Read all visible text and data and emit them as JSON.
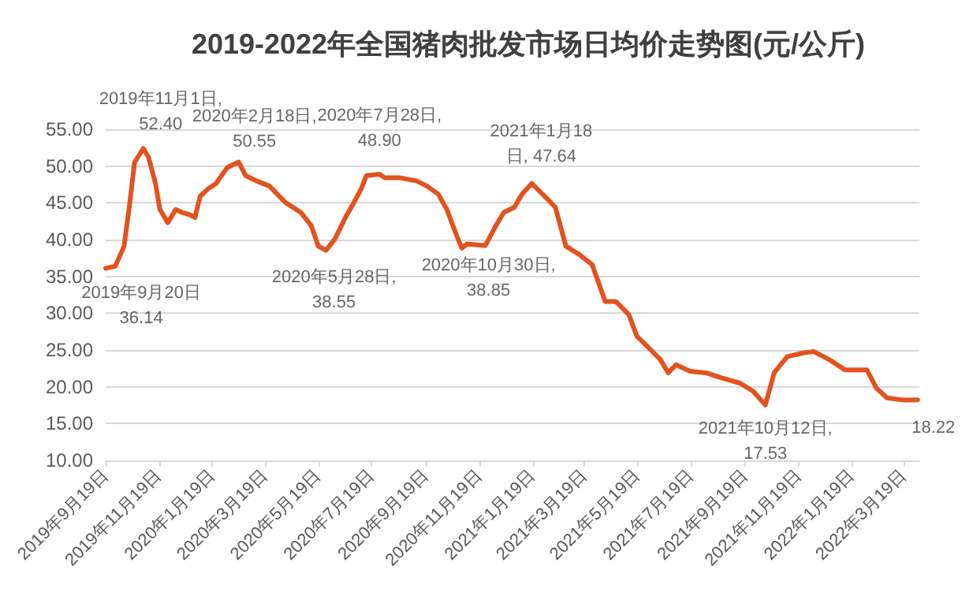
{
  "chart_data": {
    "type": "line",
    "title": "2019-2022年全国猪肉批发市场日均价走势图(元/公斤)",
    "x": [
      "2019-09-19",
      "2019-09-20",
      "2019-09-30",
      "2019-10-10",
      "2019-10-16",
      "2019-10-22",
      "2019-11-01",
      "2019-11-07",
      "2019-11-15",
      "2019-11-20",
      "2019-11-29",
      "2019-12-08",
      "2019-12-15",
      "2019-12-24",
      "2019-12-30",
      "2020-01-05",
      "2020-01-14",
      "2020-01-23",
      "2020-02-05",
      "2020-02-18",
      "2020-02-26",
      "2020-03-09",
      "2020-03-24",
      "2020-04-11",
      "2020-04-29",
      "2020-05-11",
      "2020-05-19",
      "2020-05-28",
      "2020-06-07",
      "2020-06-19",
      "2020-06-29",
      "2020-07-07",
      "2020-07-13",
      "2020-07-28",
      "2020-08-03",
      "2020-08-21",
      "2020-09-08",
      "2020-09-20",
      "2020-10-03",
      "2020-10-13",
      "2020-10-23",
      "2020-10-30",
      "2020-11-05",
      "2020-11-26",
      "2020-12-08",
      "2020-12-17",
      "2020-12-29",
      "2021-01-07",
      "2021-01-18",
      "2021-02-05",
      "2021-02-14",
      "2021-02-26",
      "2021-03-13",
      "2021-03-28",
      "2021-04-12",
      "2021-04-24",
      "2021-05-09",
      "2021-05-18",
      "2021-05-30",
      "2021-06-14",
      "2021-06-23",
      "2021-07-02",
      "2021-07-18",
      "2021-08-05",
      "2021-08-23",
      "2021-09-13",
      "2021-09-28",
      "2021-10-12",
      "2021-10-22",
      "2021-11-06",
      "2021-11-24",
      "2021-12-06",
      "2021-12-24",
      "2022-01-11",
      "2022-01-29",
      "2022-02-05",
      "2022-02-16",
      "2022-02-28",
      "2022-03-19",
      "2022-04-04"
    ],
    "series": [
      {
        "color": "#e2531f",
        "values": [
          36.1,
          36.14,
          36.4,
          39.1,
          44.4,
          50.5,
          52.4,
          51.2,
          47.6,
          44.1,
          42.3,
          44.1,
          43.7,
          43.4,
          43.0,
          45.9,
          46.9,
          47.6,
          49.8,
          50.55,
          48.7,
          48.0,
          47.3,
          45.1,
          43.7,
          41.9,
          39.1,
          38.55,
          40.1,
          43.0,
          45.1,
          46.9,
          48.7,
          48.9,
          48.4,
          48.4,
          48.0,
          47.3,
          46.2,
          44.1,
          40.9,
          38.85,
          39.4,
          39.2,
          41.9,
          43.7,
          44.4,
          46.2,
          47.64,
          45.5,
          44.4,
          39.1,
          38.0,
          36.6,
          31.6,
          31.6,
          29.8,
          26.9,
          25.5,
          23.7,
          21.9,
          23.0,
          22.1,
          21.9,
          21.2,
          20.5,
          19.4,
          17.53,
          21.9,
          24.1,
          24.6,
          24.8,
          23.7,
          22.3,
          22.3,
          22.3,
          19.8,
          18.5,
          18.2,
          18.22
        ]
      }
    ],
    "xlim": [
      "2019-09-19",
      "2022-04-06"
    ],
    "xticks": [
      {
        "value": "2019-09-19",
        "label": "2019年9月19日"
      },
      {
        "value": "2019-11-19",
        "label": "2019年11月19日"
      },
      {
        "value": "2020-01-19",
        "label": "2020年1月19日"
      },
      {
        "value": "2020-03-19",
        "label": "2020年3月19日"
      },
      {
        "value": "2020-05-19",
        "label": "2020年5月19日"
      },
      {
        "value": "2020-07-19",
        "label": "2020年7月19日"
      },
      {
        "value": "2020-09-19",
        "label": "2020年9月19日"
      },
      {
        "value": "2020-11-19",
        "label": "2020年11月19日"
      },
      {
        "value": "2021-01-19",
        "label": "2021年1月19日"
      },
      {
        "value": "2021-03-19",
        "label": "2021年3月19日"
      },
      {
        "value": "2021-05-19",
        "label": "2021年5月19日"
      },
      {
        "value": "2021-07-19",
        "label": "2021年7月19日"
      },
      {
        "value": "2021-09-19",
        "label": "2021年9月19日"
      },
      {
        "value": "2021-11-19",
        "label": "2021年11月19日"
      },
      {
        "value": "2022-01-19",
        "label": "2022年1月19日"
      },
      {
        "value": "2022-03-19",
        "label": "2022年3月19日"
      }
    ],
    "ylim": [
      10,
      55
    ],
    "yticks": [
      {
        "value": 10,
        "label": "10.00"
      },
      {
        "value": 15,
        "label": "15.00"
      },
      {
        "value": 20,
        "label": "20.00"
      },
      {
        "value": 25,
        "label": "25.00"
      },
      {
        "value": 30,
        "label": "30.00"
      },
      {
        "value": 35,
        "label": "35.00"
      },
      {
        "value": 40,
        "label": "40.00"
      },
      {
        "value": 45,
        "label": "45.00"
      },
      {
        "value": 50,
        "label": "50.00"
      },
      {
        "value": 55,
        "label": "55.00"
      }
    ],
    "grid": "y",
    "marker": "none",
    "line_style": "solid",
    "annotations": [
      {
        "text": "2019年9月20日\n36.14",
        "x": "2019-09-20",
        "y": 36.14
      },
      {
        "text": "2019年11月1日,\n52.40",
        "x": "2019-11-01",
        "y": 52.4
      },
      {
        "text": "2020年2月18日,\n50.55",
        "x": "2020-02-18",
        "y": 50.55
      },
      {
        "text": "2020年7月28日,\n48.90",
        "x": "2020-07-28",
        "y": 48.9
      },
      {
        "text": "2020年5月28日,\n38.55",
        "x": "2020-05-28",
        "y": 38.55
      },
      {
        "text": "2020年10月30日,\n38.85",
        "x": "2020-10-30",
        "y": 38.85
      },
      {
        "text": "2021年1月18\n日, 47.64",
        "x": "2021-01-18",
        "y": 47.64
      },
      {
        "text": "2021年10月12日,\n17.53",
        "x": "2021-10-12",
        "y": 17.53
      },
      {
        "text": "18.22",
        "x": "2022-04-04",
        "y": 18.22
      }
    ]
  }
}
